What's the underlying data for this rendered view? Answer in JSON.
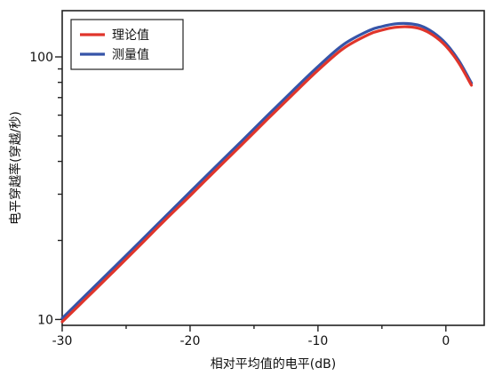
{
  "chart_data": {
    "type": "line",
    "title": "",
    "xlabel": "相对平均值的电平(dB)",
    "ylabel": "电平穿越率(穿越/秒)",
    "x_ticks": [
      "-30",
      "-20",
      "-10",
      "0"
    ],
    "y_ticks": [
      "10",
      "100"
    ],
    "xlim": [
      -30,
      3
    ],
    "ylim": [
      9.5,
      150
    ],
    "y_scale": "log",
    "grid": false,
    "legend_position": "top-left",
    "series": [
      {
        "name": "理论值",
        "color": "#e0352b",
        "x": [
          -30,
          -28,
          -26,
          -24,
          -22,
          -20,
          -18,
          -16,
          -14,
          -12,
          -10,
          -8,
          -6,
          -5,
          -4,
          -3,
          -2,
          -1,
          0,
          1,
          2
        ],
        "y": [
          9.8,
          12.2,
          15.2,
          19.0,
          23.8,
          29.6,
          37.0,
          46.1,
          57.6,
          71.7,
          88.9,
          107.8,
          122.0,
          126.5,
          129.5,
          130.2,
          128.0,
          121.0,
          110.0,
          95.0,
          78.0
        ]
      },
      {
        "name": "测量值",
        "color": "#3654a8",
        "x": [
          -30,
          -28,
          -26,
          -24,
          -22,
          -20,
          -18,
          -16,
          -14,
          -12,
          -10,
          -8,
          -6,
          -5,
          -4,
          -3,
          -2,
          -1,
          0,
          1,
          2
        ],
        "y": [
          10.1,
          12.6,
          15.7,
          19.6,
          24.5,
          30.6,
          38.2,
          47.6,
          59.5,
          74.1,
          91.8,
          111.5,
          126.0,
          130.5,
          133.5,
          134.0,
          131.5,
          124.0,
          112.5,
          97.0,
          79.5
        ]
      }
    ]
  }
}
